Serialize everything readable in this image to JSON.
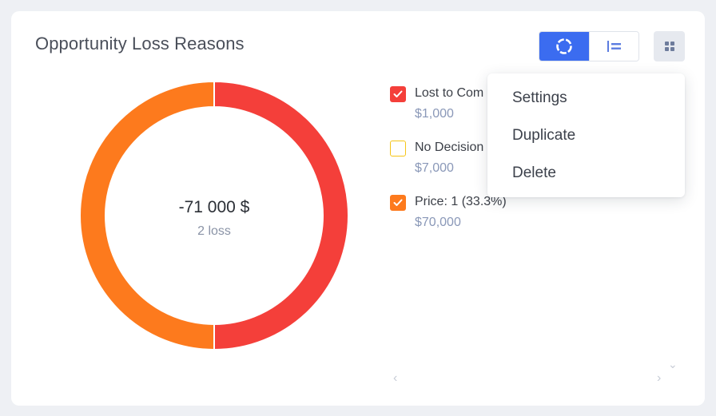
{
  "widget": {
    "title": "Opportunity Loss Reasons"
  },
  "view_toggle": {
    "active": "donut",
    "items": [
      {
        "name": "donut-view-icon"
      },
      {
        "name": "bar-view-icon"
      }
    ]
  },
  "menu_button": {
    "icon": "grid-icon"
  },
  "chart_data": {
    "type": "pie",
    "style": "donut",
    "center_value": "-71 000 $",
    "center_subtitle": "2 loss",
    "slices": [
      {
        "label": "Lost to Competitor",
        "value": 50,
        "color": "#f43f3a"
      },
      {
        "label": "Price",
        "value": 50,
        "color": "#fd7a1d"
      }
    ]
  },
  "legend": [
    {
      "label": "Lost to Com",
      "value": "$1,000",
      "checked": true,
      "color": "#f43f3a"
    },
    {
      "label": "No Decision",
      "value": "$7,000",
      "checked": false,
      "color": "#f5c518"
    },
    {
      "label": "Price: 1 (33.3%)",
      "value": "$70,000",
      "checked": true,
      "color": "#fd7a1d"
    }
  ],
  "dropdown_menu": {
    "items": [
      "Settings",
      "Duplicate",
      "Delete"
    ]
  },
  "pagination": {
    "prev": "‹",
    "next": "›",
    "scroll": "⌄"
  }
}
